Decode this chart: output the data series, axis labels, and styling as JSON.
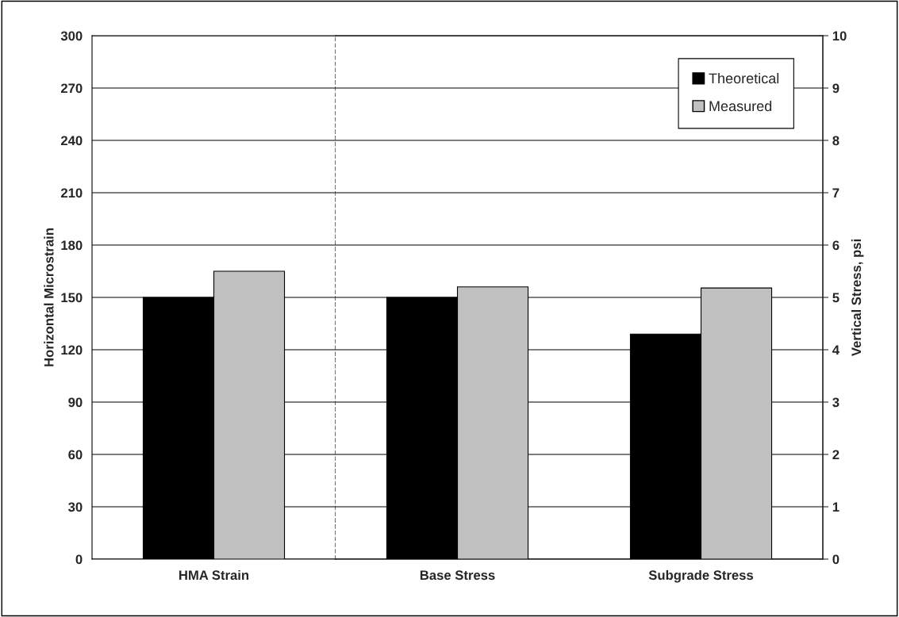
{
  "chart_data": [
    {
      "type": "bar",
      "categories": [
        "HMA Strain"
      ],
      "ylabel": "Horizontal Microstrain",
      "ylim": [
        0,
        300
      ],
      "yticks": [
        0,
        30,
        60,
        90,
        120,
        150,
        180,
        210,
        240,
        270,
        300
      ],
      "grid": "y",
      "series": [
        {
          "color": "#000000",
          "values": [
            150
          ]
        },
        {
          "color": "#c0c0c0",
          "values": [
            165
          ]
        }
      ]
    },
    {
      "type": "bar",
      "categories": [
        "Base Stress",
        "Subgrade Stress"
      ],
      "y2label": "Vertical Stress, psi",
      "y2lim": [
        0,
        10
      ],
      "y2ticks": [
        0,
        1,
        2,
        3,
        4,
        5,
        6,
        7,
        8,
        9,
        10
      ],
      "grid": "y",
      "legend": "top right",
      "series": [
        {
          "name": "Theoretical",
          "color": "#000000",
          "values": [
            5.0,
            4.3
          ],
          "axis": "y2"
        },
        {
          "name": "Measured",
          "color": "#c0c0c0",
          "values": [
            5.2,
            5.18
          ],
          "axis": "y2"
        }
      ]
    }
  ]
}
